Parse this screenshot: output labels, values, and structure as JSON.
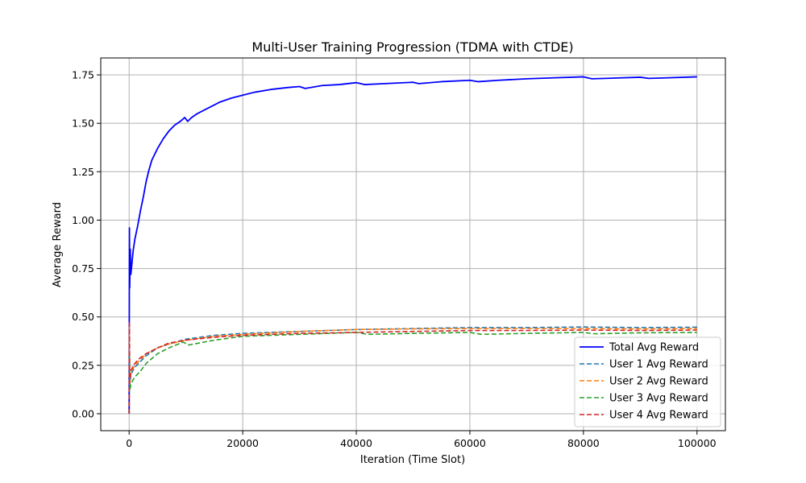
{
  "chart_data": {
    "type": "line",
    "title": "Multi-User Training Progression (TDMA with CTDE)",
    "xlabel": "Iteration (Time Slot)",
    "ylabel": "Average Reward",
    "xlim": [
      -5000,
      105000
    ],
    "ylim": [
      -0.0875,
      1.8375
    ],
    "xticks": [
      0,
      20000,
      40000,
      60000,
      80000,
      100000
    ],
    "yticks": [
      0.0,
      0.25,
      0.5,
      0.75,
      1.0,
      1.25,
      1.5,
      1.75
    ],
    "grid": true,
    "legend_position": "lower-right",
    "series": [
      {
        "name": "Total Avg Reward",
        "color": "#0000ff",
        "style": "solid",
        "x": [
          0,
          50,
          100,
          200,
          300,
          500,
          700,
          1000,
          1500,
          2000,
          2500,
          3000,
          3500,
          4000,
          5000,
          6000,
          7000,
          8000,
          9000,
          9800,
          10300,
          11000,
          12000,
          14000,
          16000,
          18000,
          20000,
          22000,
          25000,
          28000,
          30000,
          31000,
          34000,
          37000,
          40000,
          41500,
          45000,
          50000,
          51000,
          55000,
          60000,
          61500,
          65000,
          70000,
          75000,
          80000,
          81500,
          85000,
          90000,
          91500,
          95000,
          100000
        ],
        "y": [
          0.0,
          0.96,
          0.65,
          0.85,
          0.72,
          0.78,
          0.84,
          0.9,
          0.97,
          1.05,
          1.12,
          1.2,
          1.26,
          1.31,
          1.37,
          1.42,
          1.46,
          1.49,
          1.51,
          1.53,
          1.51,
          1.53,
          1.55,
          1.58,
          1.61,
          1.63,
          1.645,
          1.66,
          1.675,
          1.685,
          1.69,
          1.68,
          1.695,
          1.7,
          1.71,
          1.7,
          1.705,
          1.712,
          1.705,
          1.715,
          1.722,
          1.715,
          1.722,
          1.73,
          1.735,
          1.74,
          1.73,
          1.733,
          1.738,
          1.732,
          1.735,
          1.74
        ]
      },
      {
        "name": "User 1 Avg Reward",
        "color": "#1f77b4",
        "style": "dashed",
        "x": [
          0,
          50,
          100,
          300,
          600,
          1000,
          2000,
          3000,
          5000,
          7000,
          10000,
          15000,
          20000,
          30000,
          40000,
          50000,
          60000,
          70000,
          80000,
          90000,
          100000
        ],
        "y": [
          0.0,
          0.4,
          0.15,
          0.2,
          0.22,
          0.24,
          0.27,
          0.3,
          0.34,
          0.36,
          0.385,
          0.405,
          0.415,
          0.425,
          0.435,
          0.44,
          0.445,
          0.445,
          0.448,
          0.445,
          0.447
        ]
      },
      {
        "name": "User 2 Avg Reward",
        "color": "#ff7f0e",
        "style": "dashed",
        "x": [
          0,
          50,
          100,
          300,
          600,
          1000,
          2000,
          3000,
          5000,
          7000,
          10000,
          15000,
          20000,
          30000,
          40000,
          50000,
          60000,
          70000,
          80000,
          90000,
          100000
        ],
        "y": [
          0.0,
          0.45,
          0.17,
          0.21,
          0.23,
          0.25,
          0.28,
          0.31,
          0.34,
          0.36,
          0.38,
          0.4,
          0.41,
          0.425,
          0.435,
          0.438,
          0.44,
          0.44,
          0.44,
          0.438,
          0.44
        ]
      },
      {
        "name": "User 3 Avg Reward",
        "color": "#2ca02c",
        "style": "dashed",
        "x": [
          0,
          50,
          100,
          300,
          600,
          1000,
          2000,
          3000,
          5000,
          7000,
          9500,
          10500,
          15000,
          20000,
          30000,
          40000,
          42000,
          50000,
          60000,
          62000,
          70000,
          80000,
          82000,
          90000,
          100000
        ],
        "y": [
          0.0,
          0.3,
          0.12,
          0.15,
          0.17,
          0.19,
          0.22,
          0.26,
          0.31,
          0.34,
          0.37,
          0.355,
          0.38,
          0.4,
          0.41,
          0.42,
          0.41,
          0.415,
          0.42,
          0.41,
          0.415,
          0.42,
          0.413,
          0.418,
          0.42
        ]
      },
      {
        "name": "User 4 Avg Reward",
        "color": "#d62728",
        "style": "dashed",
        "x": [
          0,
          50,
          100,
          300,
          600,
          1000,
          2000,
          3000,
          5000,
          7000,
          10000,
          15000,
          20000,
          30000,
          40000,
          50000,
          60000,
          70000,
          80000,
          90000,
          100000
        ],
        "y": [
          0.0,
          0.48,
          0.16,
          0.22,
          0.24,
          0.26,
          0.29,
          0.31,
          0.34,
          0.365,
          0.38,
          0.395,
          0.405,
          0.415,
          0.42,
          0.425,
          0.43,
          0.43,
          0.432,
          0.43,
          0.432
        ]
      }
    ]
  }
}
